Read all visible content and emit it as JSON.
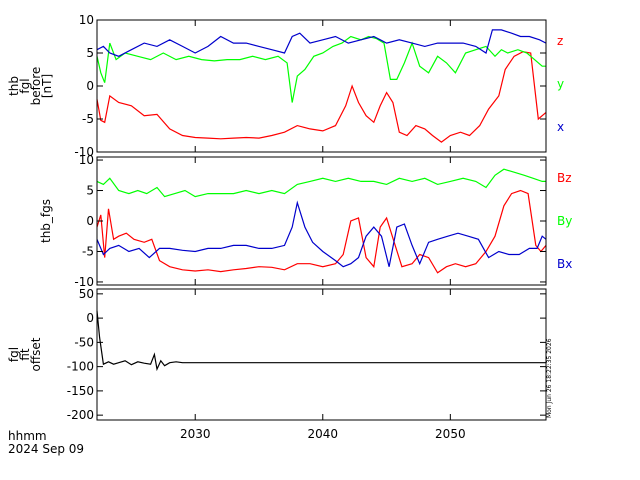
{
  "chart_data": [
    {
      "type": "line",
      "ylabel_lines": [
        "thb",
        "fgl",
        "before",
        "[nT]"
      ],
      "ylim": [
        -10,
        10
      ],
      "yticks": [
        10,
        5,
        0,
        -5,
        -10
      ],
      "series": [
        {
          "name": "z",
          "color": "#ff0000",
          "x": [
            2022.3,
            2022.6,
            2022.9,
            2023.3,
            2024.0,
            2025.0,
            2026.0,
            2027.0,
            2028.0,
            2029.0,
            2030.0,
            2031.0,
            2032.0,
            2033.0,
            2034.0,
            2035.0,
            2036.0,
            2037.0,
            2038.0,
            2039.0,
            2040.0,
            2041.0,
            2041.8,
            2042.3,
            2042.8,
            2043.4,
            2044.0,
            2044.5,
            2045.0,
            2045.5,
            2046.0,
            2046.6,
            2047.3,
            2048.0,
            2048.6,
            2049.3,
            2050.0,
            2050.8,
            2051.5,
            2052.3,
            2053.0,
            2053.8,
            2054.3,
            2055.0,
            2055.7,
            2056.3,
            2056.9,
            2057.5
          ],
          "y": [
            -2.0,
            -5.2,
            -5.5,
            -1.5,
            -2.5,
            -3.0,
            -4.5,
            -4.3,
            -6.5,
            -7.5,
            -7.8,
            -7.9,
            -8.0,
            -7.9,
            -7.8,
            -7.9,
            -7.5,
            -7.0,
            -6.0,
            -6.5,
            -6.8,
            -6.0,
            -3.0,
            0.0,
            -2.5,
            -4.5,
            -5.5,
            -3.0,
            -1.0,
            -2.5,
            -7.0,
            -7.5,
            -6.0,
            -6.5,
            -7.5,
            -8.5,
            -7.5,
            -7.0,
            -7.5,
            -6.0,
            -3.5,
            -1.5,
            2.5,
            4.5,
            5.2,
            5.0,
            -5.0,
            -4.0
          ]
        },
        {
          "name": "y",
          "color": "#00ff00",
          "x": [
            2022.3,
            2022.6,
            2022.9,
            2023.3,
            2023.8,
            2024.5,
            2025.5,
            2026.5,
            2027.5,
            2028.5,
            2029.5,
            2030.5,
            2031.5,
            2032.5,
            2033.5,
            2034.5,
            2035.5,
            2036.5,
            2037.2,
            2037.6,
            2038.0,
            2038.6,
            2039.3,
            2040.0,
            2040.8,
            2041.5,
            2042.2,
            2043.0,
            2043.6,
            2044.2,
            2044.8,
            2045.3,
            2045.8,
            2046.4,
            2047.0,
            2047.6,
            2048.3,
            2049.0,
            2049.7,
            2050.4,
            2051.2,
            2052.0,
            2052.8,
            2053.5,
            2054.0,
            2054.5,
            2055.3,
            2056.0,
            2056.6,
            2057.2,
            2057.5
          ],
          "y": [
            4.5,
            2.0,
            0.5,
            6.5,
            4.0,
            5.0,
            4.5,
            4.0,
            5.0,
            4.0,
            4.5,
            4.0,
            3.8,
            4.0,
            4.0,
            4.5,
            4.0,
            4.5,
            3.5,
            -2.5,
            1.5,
            2.5,
            4.5,
            5.0,
            6.0,
            6.5,
            7.5,
            7.0,
            7.5,
            7.2,
            6.5,
            1.0,
            1.0,
            3.5,
            6.5,
            3.0,
            2.0,
            4.5,
            3.5,
            2.0,
            5.0,
            5.5,
            6.0,
            4.5,
            5.5,
            5.0,
            5.5,
            5.0,
            4.0,
            3.0,
            3.0
          ]
        },
        {
          "name": "x",
          "color": "#0000cc",
          "x": [
            2022.3,
            2022.8,
            2023.3,
            2024.0,
            2025.0,
            2026.0,
            2027.0,
            2028.0,
            2029.0,
            2030.0,
            2031.0,
            2032.0,
            2033.0,
            2034.0,
            2035.0,
            2036.0,
            2037.0,
            2037.6,
            2038.2,
            2039.0,
            2040.0,
            2041.0,
            2042.0,
            2043.0,
            2044.0,
            2045.0,
            2046.0,
            2047.0,
            2048.0,
            2049.0,
            2050.0,
            2051.0,
            2052.0,
            2052.8,
            2053.3,
            2054.0,
            2054.8,
            2055.5,
            2056.2,
            2057.0,
            2057.5
          ],
          "y": [
            5.5,
            6.0,
            5.0,
            4.5,
            5.5,
            6.5,
            6.0,
            7.0,
            6.0,
            5.0,
            6.0,
            7.5,
            6.5,
            6.5,
            6.0,
            5.5,
            5.0,
            7.5,
            8.0,
            6.5,
            7.0,
            7.5,
            6.5,
            7.0,
            7.5,
            6.5,
            7.0,
            6.5,
            6.0,
            6.5,
            6.5,
            6.5,
            6.0,
            5.0,
            8.5,
            8.5,
            8.0,
            7.5,
            7.5,
            7.0,
            6.5
          ]
        }
      ],
      "legend": [
        "z",
        "y",
        "x"
      ]
    },
    {
      "type": "line",
      "ylabel_lines": [
        "thb_fgs"
      ],
      "ylim": [
        -10.5,
        10.5
      ],
      "yticks": [
        10,
        5,
        0,
        -5,
        -10
      ],
      "series": [
        {
          "name": "Bz",
          "color": "#ff0000",
          "x": [
            2022.3,
            2022.6,
            2022.9,
            2023.2,
            2023.6,
            2024.0,
            2024.6,
            2025.2,
            2026.0,
            2026.6,
            2027.2,
            2028.0,
            2029.0,
            2030.0,
            2031.0,
            2032.0,
            2033.0,
            2034.0,
            2035.0,
            2036.0,
            2037.0,
            2038.0,
            2039.0,
            2040.0,
            2041.0,
            2041.6,
            2042.2,
            2042.8,
            2043.4,
            2044.0,
            2044.5,
            2045.0,
            2045.6,
            2046.2,
            2047.0,
            2047.6,
            2048.3,
            2049.0,
            2049.7,
            2050.4,
            2051.2,
            2052.0,
            2052.8,
            2053.5,
            2054.2,
            2054.8,
            2055.5,
            2056.1,
            2056.7,
            2057.1,
            2057.5
          ],
          "y": [
            -1.0,
            1.0,
            -6.0,
            2.0,
            -3.0,
            -2.5,
            -2.0,
            -3.0,
            -3.5,
            -3.0,
            -6.5,
            -7.5,
            -8.0,
            -8.2,
            -8.0,
            -8.3,
            -8.0,
            -7.8,
            -7.5,
            -7.6,
            -8.0,
            -7.0,
            -7.0,
            -7.5,
            -7.0,
            -5.5,
            0.0,
            0.5,
            -6.0,
            -7.5,
            -1.0,
            0.5,
            -3.5,
            -7.5,
            -7.0,
            -5.5,
            -6.0,
            -8.5,
            -7.5,
            -7.0,
            -7.5,
            -7.0,
            -5.0,
            -2.5,
            2.5,
            4.5,
            5.0,
            4.5,
            -4.0,
            -5.0,
            -4.0
          ]
        },
        {
          "name": "By",
          "color": "#00ff00",
          "x": [
            2022.3,
            2022.8,
            2023.3,
            2024.0,
            2024.8,
            2025.5,
            2026.2,
            2027.0,
            2027.6,
            2028.4,
            2029.2,
            2030.0,
            2031.0,
            2032.0,
            2033.0,
            2034.0,
            2035.0,
            2036.0,
            2037.0,
            2038.0,
            2039.0,
            2040.0,
            2041.0,
            2042.0,
            2043.0,
            2044.0,
            2045.0,
            2046.0,
            2047.0,
            2048.0,
            2049.0,
            2050.0,
            2051.0,
            2052.0,
            2052.8,
            2053.5,
            2054.2,
            2055.0,
            2055.8,
            2056.5,
            2057.2,
            2057.5
          ],
          "y": [
            6.5,
            6.0,
            7.0,
            5.0,
            4.5,
            5.0,
            4.5,
            5.5,
            4.0,
            4.5,
            5.0,
            4.0,
            4.5,
            4.5,
            4.5,
            5.0,
            4.5,
            5.0,
            4.5,
            6.0,
            6.5,
            7.0,
            6.5,
            7.0,
            6.5,
            6.5,
            6.0,
            7.0,
            6.5,
            7.0,
            6.0,
            6.5,
            7.0,
            6.5,
            5.5,
            7.5,
            8.5,
            8.0,
            7.5,
            7.0,
            6.5,
            6.5
          ]
        },
        {
          "name": "Bx",
          "color": "#0000cc",
          "x": [
            2022.3,
            2022.8,
            2023.3,
            2024.0,
            2024.8,
            2025.6,
            2026.4,
            2027.2,
            2028.0,
            2029.0,
            2030.0,
            2031.0,
            2032.0,
            2033.0,
            2034.0,
            2035.0,
            2036.0,
            2037.0,
            2037.6,
            2038.0,
            2038.6,
            2039.2,
            2040.0,
            2041.0,
            2041.6,
            2042.2,
            2042.8,
            2043.4,
            2044.0,
            2044.6,
            2045.2,
            2045.8,
            2046.4,
            2047.0,
            2047.6,
            2048.3,
            2049.0,
            2049.8,
            2050.6,
            2051.4,
            2052.2,
            2053.0,
            2053.8,
            2054.6,
            2055.4,
            2056.2,
            2056.8,
            2057.2,
            2057.5
          ],
          "y": [
            -3.0,
            -5.5,
            -4.5,
            -4.0,
            -5.0,
            -4.5,
            -6.0,
            -4.5,
            -4.5,
            -4.8,
            -5.0,
            -4.5,
            -4.5,
            -4.0,
            -4.0,
            -4.5,
            -4.5,
            -4.0,
            -1.0,
            3.0,
            -1.0,
            -3.5,
            -5.0,
            -6.5,
            -7.5,
            -7.0,
            -6.0,
            -2.5,
            -1.0,
            -2.5,
            -7.5,
            -1.0,
            -0.5,
            -4.0,
            -7.0,
            -3.5,
            -3.0,
            -2.5,
            -2.0,
            -2.5,
            -3.0,
            -6.0,
            -5.0,
            -5.5,
            -5.5,
            -4.5,
            -4.5,
            -2.5,
            -3.0
          ]
        }
      ],
      "legend": [
        "Bz",
        "By",
        "Bx"
      ]
    },
    {
      "type": "line",
      "ylabel_lines": [
        "fgl",
        "fit",
        "offset"
      ],
      "ylim": [
        -210,
        60
      ],
      "yticks": [
        50,
        0,
        -50,
        -100,
        -150,
        -200
      ],
      "series": [
        {
          "name": "",
          "color": "#000000",
          "x": [
            2022.3,
            2022.5,
            2022.8,
            2023.2,
            2023.6,
            2024.0,
            2024.5,
            2025.0,
            2025.5,
            2026.0,
            2026.5,
            2026.8,
            2027.0,
            2027.3,
            2027.6,
            2028.0,
            2028.5,
            2029.0,
            2030.0,
            2032.0,
            2034.0,
            2036.0,
            2038.0,
            2040.0,
            2042.0,
            2044.0,
            2046.0,
            2048.0,
            2050.0,
            2052.0,
            2054.0,
            2056.0,
            2057.5
          ],
          "y": [
            15,
            -40,
            -95,
            -90,
            -95,
            -92,
            -88,
            -96,
            -90,
            -93,
            -95,
            -75,
            -105,
            -88,
            -98,
            -92,
            -90,
            -92,
            -92,
            -92,
            -92,
            -92,
            -92,
            -92,
            -92,
            -92,
            -92,
            -92,
            -92,
            -92,
            -92,
            -92,
            -92
          ]
        }
      ],
      "legend": []
    }
  ],
  "x_axis": {
    "ticks": [
      2030,
      2040,
      2050
    ],
    "xlim": [
      2022.3,
      2057.5
    ],
    "corner_label_1": "hhmm",
    "corner_label_2": "2024 Sep 09"
  },
  "side_timestamp": "Mon Jun 26 18:22:35 2026"
}
